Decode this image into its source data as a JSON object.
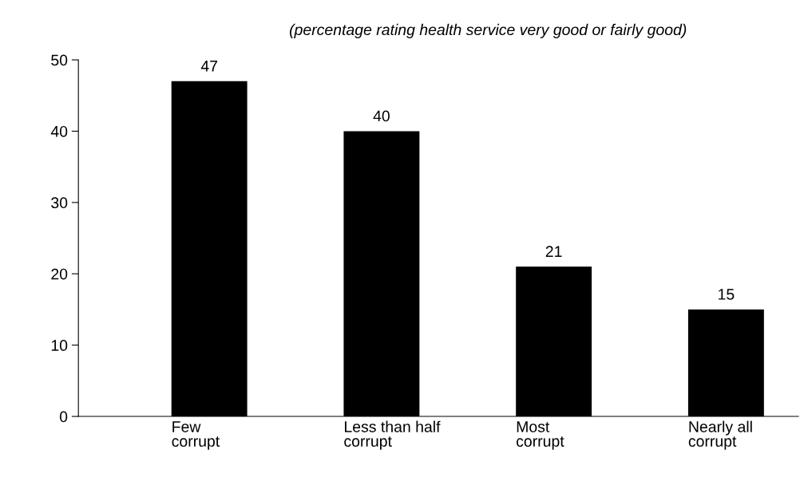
{
  "chart_data": {
    "type": "bar",
    "title": "(percentage rating health service very good or fairly good)",
    "categories": [
      "Few\ncorrupt",
      "Less than half\ncorrupt",
      "Most\ncorrupt",
      "Nearly all\ncorrupt"
    ],
    "values": [
      47,
      40,
      21,
      15
    ],
    "color": "#000000",
    "ylim": [
      0,
      50
    ],
    "yticks": [
      0,
      10,
      20,
      30,
      40,
      50
    ],
    "grid": false,
    "data_labels": true
  }
}
